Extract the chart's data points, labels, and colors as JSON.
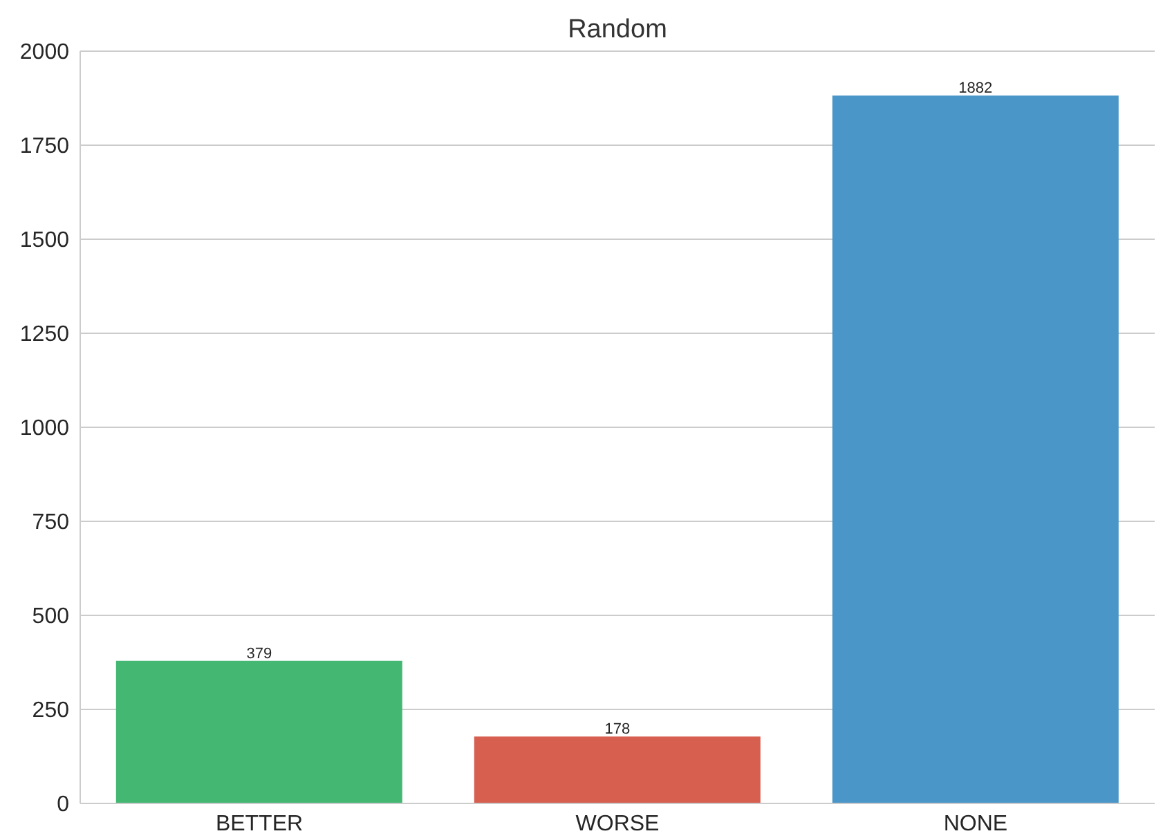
{
  "chart_data": {
    "type": "bar",
    "title": "Random",
    "categories": [
      "BETTER",
      "WORSE",
      "NONE"
    ],
    "values": [
      379,
      178,
      1882
    ],
    "colors": [
      "#44b873",
      "#d65f50",
      "#4a96c8"
    ],
    "ylim": [
      0,
      2000
    ],
    "yticks": [
      0,
      250,
      500,
      750,
      1000,
      1250,
      1500,
      1750,
      2000
    ],
    "grid": "y",
    "data_labels": true
  }
}
